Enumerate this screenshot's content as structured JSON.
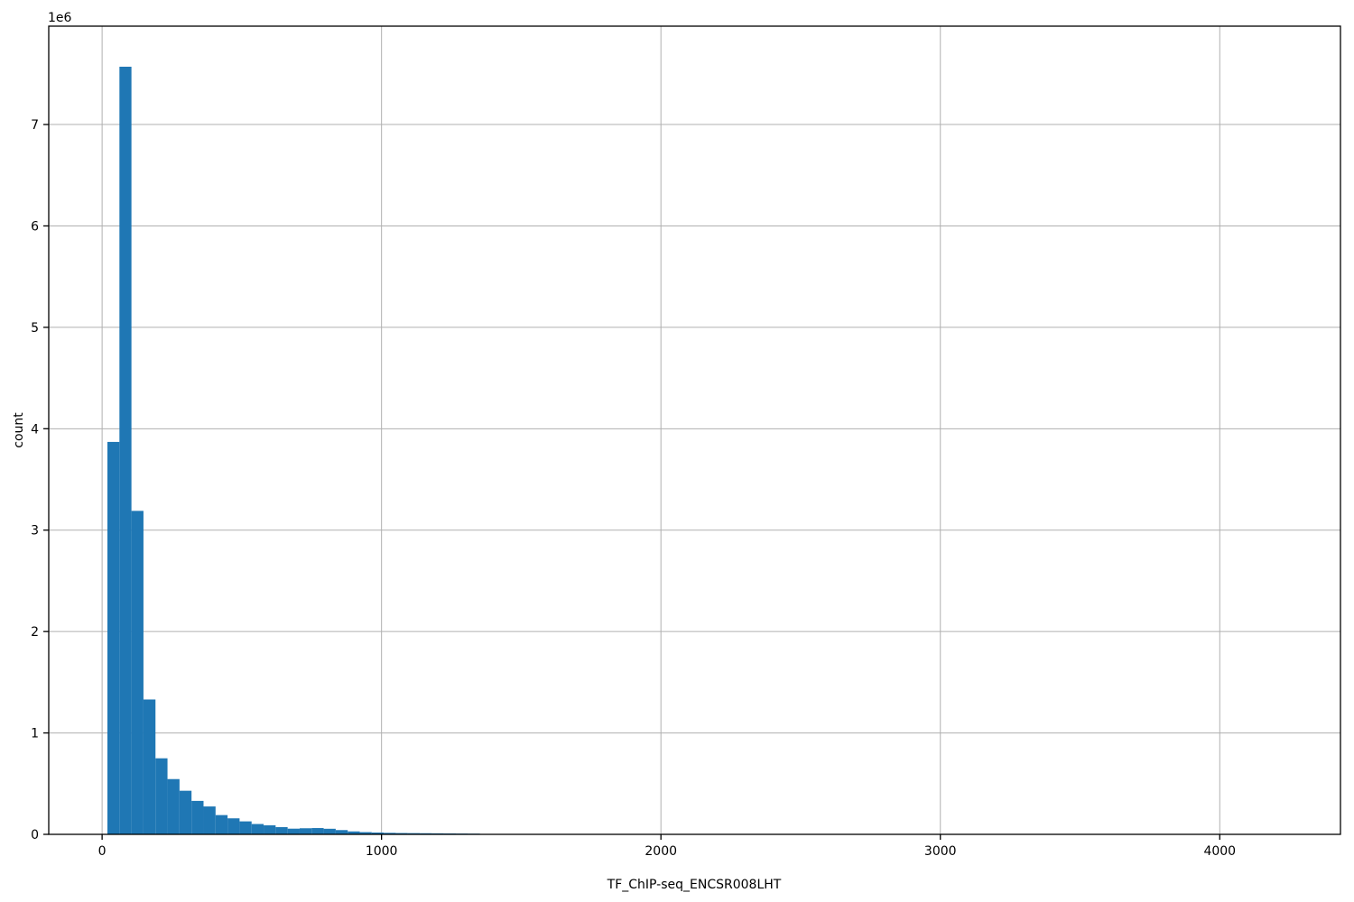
{
  "chart_data": {
    "type": "bar",
    "subtype": "histogram",
    "title": "",
    "xlabel": "TF_ChIP-seq_ENCSR008LHT",
    "ylabel": "count",
    "offset_label": "1e6",
    "bar_color": "#1f77b4",
    "grid_color": "#b0b0b0",
    "spine_color": "#000000",
    "grid": true,
    "legend": false,
    "xlim": [
      -191,
      4432
    ],
    "ylim": [
      0,
      7970000
    ],
    "x_ticks": [
      0,
      1000,
      2000,
      3000,
      4000
    ],
    "x_tick_labels": [
      "0",
      "1000",
      "2000",
      "3000",
      "4000"
    ],
    "y_ticks": [
      0,
      1000000,
      2000000,
      3000000,
      4000000,
      5000000,
      6000000,
      7000000
    ],
    "y_tick_labels": [
      "0",
      "1",
      "2",
      "3",
      "4",
      "5",
      "6",
      "7"
    ],
    "bins": {
      "start": 19,
      "width": 43
    },
    "counts": [
      3870000,
      7570000,
      3190000,
      1330000,
      750000,
      545000,
      430000,
      330000,
      275000,
      190000,
      158000,
      128000,
      102000,
      89000,
      71000,
      56000,
      60000,
      62000,
      55000,
      42000,
      29000,
      22000,
      18000,
      15000,
      13000,
      12000,
      11000,
      10000,
      9000,
      8000,
      7000
    ]
  }
}
